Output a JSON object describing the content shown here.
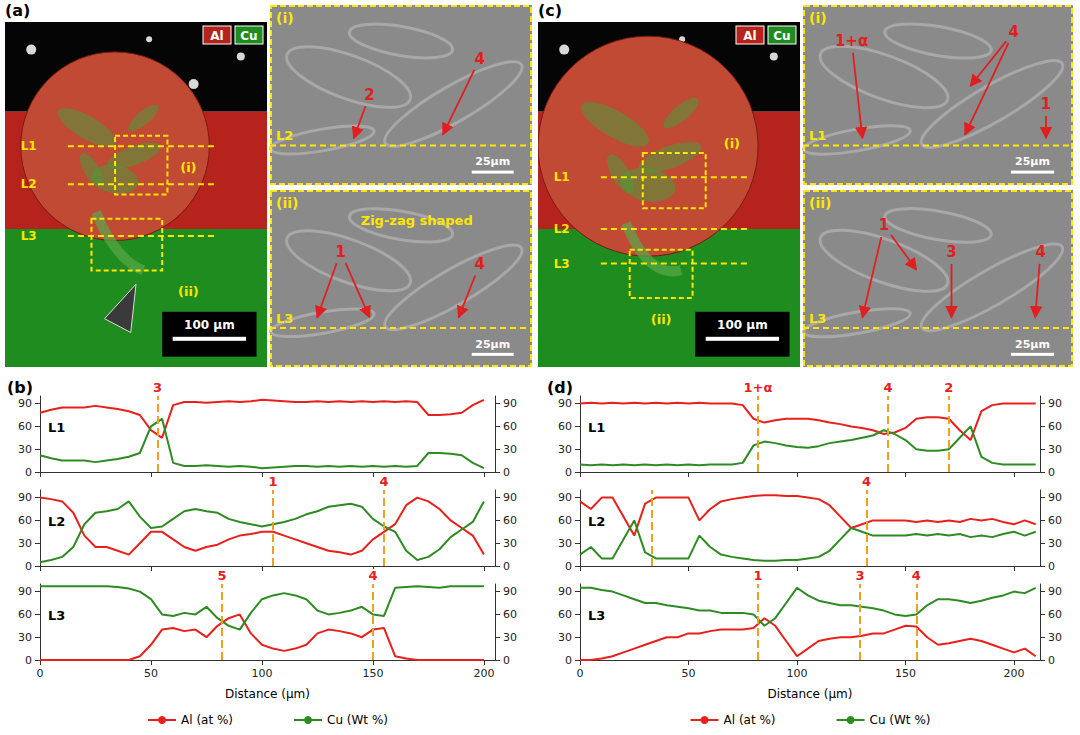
{
  "panels": [
    {
      "letter": "(a)",
      "eds_legend": [
        "Al",
        "Cu"
      ],
      "lines": [
        "L1",
        "L2",
        "L3"
      ],
      "boxes": [
        "(i)",
        "(ii)"
      ],
      "scale_bar": "100 μm",
      "insets": [
        {
          "label": "(i)",
          "line": "L2",
          "markers": [
            "2",
            "4"
          ],
          "scale_bar": "25μm"
        },
        {
          "label": "(ii)",
          "line": "L3",
          "markers": [
            "1",
            "4"
          ],
          "note": "Zig-zag shaped",
          "scale_bar": "25μm"
        }
      ]
    },
    {
      "letter": "(c)",
      "eds_legend": [
        "Al",
        "Cu"
      ],
      "lines": [
        "L1",
        "L2",
        "L3"
      ],
      "boxes": [
        "(i)",
        "(ii)"
      ],
      "scale_bar": "100 μm",
      "insets": [
        {
          "label": "(i)",
          "line": "L1",
          "markers": [
            "1+α",
            "4",
            "1"
          ],
          "scale_bar": "25μm"
        },
        {
          "label": "(ii)",
          "line": "L3",
          "markers": [
            "1",
            "3",
            "4"
          ],
          "scale_bar": "25μm"
        }
      ]
    }
  ],
  "chart_data": [
    {
      "type": "line",
      "panel": "(b)",
      "title": "L1",
      "tick_labels": "y",
      "x": [
        0,
        5,
        10,
        15,
        20,
        25,
        30,
        35,
        40,
        45,
        50,
        55,
        60,
        65,
        70,
        75,
        80,
        85,
        90,
        95,
        100,
        105,
        110,
        115,
        120,
        125,
        130,
        135,
        140,
        145,
        150,
        155,
        160,
        165,
        170,
        175,
        180,
        185,
        190,
        195,
        200
      ],
      "series": [
        {
          "name": "Al (at %)",
          "color": "#e8201c",
          "values": [
            78,
            82,
            85,
            85,
            85,
            87,
            85,
            83,
            80,
            75,
            55,
            45,
            88,
            92,
            92,
            91,
            92,
            93,
            92,
            93,
            95,
            94,
            93,
            92,
            92,
            93,
            92,
            93,
            92,
            93,
            92,
            93,
            92,
            93,
            92,
            75,
            75,
            76,
            78,
            88,
            95
          ]
        },
        {
          "name": "Cu (Wt %)",
          "color": "#2e8b22",
          "axis": "y2",
          "values": [
            22,
            18,
            15,
            15,
            15,
            13,
            15,
            17,
            20,
            25,
            60,
            70,
            12,
            8,
            8,
            9,
            8,
            7,
            8,
            7,
            5,
            6,
            7,
            8,
            8,
            7,
            8,
            7,
            8,
            7,
            8,
            7,
            8,
            7,
            8,
            25,
            25,
            24,
            22,
            12,
            5
          ]
        }
      ],
      "annotations": [
        {
          "x": 53,
          "label": "3"
        }
      ],
      "xlim": [
        0,
        205
      ],
      "xticks": [
        0,
        50,
        100,
        150,
        200
      ],
      "ylim": [
        0,
        100
      ],
      "yticks": [
        0,
        30,
        60,
        90
      ],
      "y2lim": [
        0,
        100
      ],
      "y2ticks": [
        0,
        30,
        60,
        90
      ]
    },
    {
      "type": "line",
      "panel": "(b)",
      "title": "L2",
      "tick_labels": "y",
      "x": [
        0,
        5,
        10,
        15,
        20,
        25,
        30,
        35,
        40,
        45,
        50,
        55,
        60,
        65,
        70,
        75,
        80,
        85,
        90,
        95,
        100,
        105,
        110,
        115,
        120,
        125,
        130,
        135,
        140,
        145,
        150,
        155,
        160,
        165,
        170,
        175,
        180,
        185,
        190,
        195,
        200
      ],
      "series": [
        {
          "name": "Al (at %)",
          "color": "#e8201c",
          "values": [
            90,
            88,
            85,
            70,
            40,
            25,
            25,
            20,
            15,
            30,
            45,
            45,
            35,
            25,
            20,
            25,
            28,
            35,
            40,
            42,
            45,
            45,
            40,
            35,
            30,
            25,
            20,
            18,
            15,
            20,
            35,
            45,
            55,
            80,
            90,
            85,
            75,
            60,
            50,
            40,
            15
          ]
        },
        {
          "name": "Cu (Wt %)",
          "color": "#2e8b22",
          "axis": "y2",
          "values": [
            5,
            8,
            12,
            25,
            55,
            70,
            72,
            75,
            85,
            65,
            50,
            52,
            62,
            72,
            75,
            72,
            70,
            62,
            58,
            55,
            52,
            55,
            58,
            62,
            68,
            72,
            78,
            80,
            82,
            78,
            62,
            52,
            45,
            20,
            8,
            12,
            22,
            38,
            48,
            58,
            85
          ]
        }
      ],
      "annotations": [
        {
          "x": 105,
          "label": "1"
        },
        {
          "x": 155,
          "label": "4"
        }
      ],
      "xlim": [
        0,
        205
      ],
      "xticks": [
        0,
        50,
        100,
        150,
        200
      ],
      "ylim": [
        0,
        100
      ],
      "yticks": [
        0,
        30,
        60,
        90
      ],
      "y2lim": [
        0,
        100
      ],
      "y2ticks": [
        0,
        30,
        60,
        90
      ]
    },
    {
      "type": "line",
      "panel": "(b)",
      "title": "L3",
      "x_label": "Distance (μm)",
      "legend": "bottom",
      "x": [
        0,
        5,
        10,
        15,
        20,
        25,
        30,
        35,
        40,
        45,
        50,
        55,
        60,
        65,
        70,
        75,
        80,
        85,
        90,
        95,
        100,
        105,
        110,
        115,
        120,
        125,
        130,
        135,
        140,
        145,
        150,
        155,
        160,
        165,
        170,
        175,
        180,
        185,
        190,
        195,
        200
      ],
      "series": [
        {
          "name": "Al (at %)",
          "color": "#e8201c",
          "values": [
            0,
            0,
            0,
            0,
            0,
            0,
            0,
            0,
            0,
            5,
            20,
            40,
            42,
            38,
            40,
            30,
            45,
            55,
            60,
            35,
            20,
            15,
            12,
            15,
            20,
            35,
            40,
            38,
            35,
            30,
            40,
            42,
            5,
            2,
            0,
            0,
            0,
            0,
            0,
            0,
            0
          ]
        },
        {
          "name": "Cu (Wt %)",
          "color": "#2e8b22",
          "axis": "y2",
          "values": [
            97,
            97,
            97,
            97,
            97,
            97,
            97,
            96,
            94,
            90,
            80,
            60,
            58,
            62,
            60,
            70,
            55,
            45,
            40,
            62,
            80,
            85,
            88,
            85,
            80,
            65,
            60,
            62,
            65,
            70,
            60,
            58,
            95,
            96,
            97,
            96,
            95,
            97,
            97,
            97,
            97
          ]
        }
      ],
      "annotations": [
        {
          "x": 82,
          "label": "5"
        },
        {
          "x": 150,
          "label": "4"
        }
      ],
      "xlim": [
        0,
        205
      ],
      "xticks": [
        0,
        50,
        100,
        150,
        200
      ],
      "ylim": [
        0,
        100
      ],
      "yticks": [
        0,
        30,
        60,
        90
      ],
      "y2lim": [
        0,
        100
      ],
      "y2ticks": [
        0,
        30,
        60,
        90
      ]
    },
    {
      "type": "line",
      "panel": "(d)",
      "title": "L1",
      "tick_labels": "y",
      "x": [
        0,
        5,
        10,
        15,
        20,
        25,
        30,
        35,
        40,
        45,
        50,
        55,
        60,
        65,
        70,
        75,
        80,
        85,
        90,
        95,
        100,
        105,
        110,
        115,
        120,
        125,
        130,
        135,
        140,
        145,
        150,
        155,
        160,
        165,
        170,
        175,
        180,
        185,
        190,
        195,
        200,
        205,
        210
      ],
      "series": [
        {
          "name": "Al (at %)",
          "color": "#e8201c",
          "values": [
            90,
            91,
            90,
            91,
            90,
            91,
            90,
            91,
            90,
            91,
            90,
            91,
            90,
            90,
            90,
            88,
            70,
            65,
            68,
            70,
            70,
            70,
            68,
            65,
            63,
            60,
            58,
            55,
            50,
            52,
            58,
            70,
            72,
            72,
            70,
            55,
            42,
            80,
            88,
            90,
            90,
            90,
            90
          ]
        },
        {
          "name": "Cu (Wt %)",
          "color": "#2e8b22",
          "axis": "y2",
          "values": [
            10,
            9,
            10,
            9,
            10,
            9,
            10,
            9,
            10,
            9,
            10,
            9,
            10,
            10,
            10,
            12,
            35,
            40,
            38,
            35,
            33,
            32,
            34,
            38,
            40,
            42,
            45,
            48,
            55,
            50,
            42,
            30,
            28,
            28,
            30,
            45,
            60,
            20,
            12,
            10,
            10,
            10,
            10
          ]
        }
      ],
      "annotations": [
        {
          "x": 82,
          "label": "1+α"
        },
        {
          "x": 142,
          "label": "4"
        },
        {
          "x": 170,
          "label": "2"
        }
      ],
      "xlim": [
        0,
        212
      ],
      "xticks": [
        0,
        50,
        100,
        150,
        200
      ],
      "ylim": [
        0,
        100
      ],
      "yticks": [
        0,
        30,
        60,
        90
      ],
      "y2lim": [
        0,
        100
      ],
      "y2ticks": [
        0,
        30,
        60,
        90
      ]
    },
    {
      "type": "line",
      "panel": "(d)",
      "title": "L2",
      "tick_labels": "y",
      "x": [
        0,
        5,
        10,
        15,
        20,
        25,
        30,
        35,
        40,
        45,
        50,
        55,
        60,
        65,
        70,
        75,
        80,
        85,
        90,
        95,
        100,
        105,
        110,
        115,
        120,
        125,
        130,
        135,
        140,
        145,
        150,
        155,
        160,
        165,
        170,
        175,
        180,
        185,
        190,
        195,
        200,
        205,
        210
      ],
      "series": [
        {
          "name": "Al (at %)",
          "color": "#e8201c",
          "values": [
            85,
            75,
            90,
            90,
            65,
            40,
            82,
            90,
            90,
            90,
            90,
            60,
            75,
            85,
            88,
            90,
            92,
            93,
            93,
            92,
            92,
            90,
            88,
            80,
            65,
            50,
            55,
            60,
            60,
            60,
            60,
            58,
            60,
            58,
            60,
            58,
            62,
            60,
            62,
            58,
            55,
            60,
            55
          ]
        },
        {
          "name": "Cu (Wt %)",
          "color": "#2e8b22",
          "axis": "y2",
          "values": [
            15,
            25,
            10,
            10,
            35,
            60,
            18,
            10,
            10,
            10,
            10,
            40,
            25,
            15,
            12,
            10,
            8,
            7,
            7,
            8,
            8,
            10,
            12,
            20,
            35,
            50,
            45,
            40,
            40,
            40,
            40,
            42,
            40,
            42,
            40,
            42,
            38,
            40,
            38,
            42,
            45,
            40,
            45
          ]
        }
      ],
      "annotations": [
        {
          "x": 33
        },
        {
          "x": 132,
          "label": "4"
        }
      ],
      "xlim": [
        0,
        212
      ],
      "xticks": [
        0,
        50,
        100,
        150,
        200
      ],
      "ylim": [
        0,
        100
      ],
      "yticks": [
        0,
        30,
        60,
        90
      ],
      "y2lim": [
        0,
        100
      ],
      "y2ticks": [
        0,
        30,
        60,
        90
      ]
    },
    {
      "type": "line",
      "panel": "(d)",
      "title": "L3",
      "x_label": "Distance (μm)",
      "legend": "bottom",
      "x": [
        0,
        5,
        10,
        15,
        20,
        25,
        30,
        35,
        40,
        45,
        50,
        55,
        60,
        65,
        70,
        75,
        80,
        85,
        90,
        95,
        100,
        105,
        110,
        115,
        120,
        125,
        130,
        135,
        140,
        145,
        150,
        155,
        160,
        165,
        170,
        175,
        180,
        185,
        190,
        195,
        200,
        205,
        210
      ],
      "series": [
        {
          "name": "Al (at %)",
          "color": "#e8201c",
          "values": [
            0,
            0,
            2,
            5,
            10,
            15,
            20,
            25,
            30,
            30,
            35,
            35,
            38,
            40,
            40,
            40,
            42,
            55,
            45,
            25,
            5,
            15,
            25,
            28,
            30,
            30,
            32,
            35,
            35,
            40,
            45,
            44,
            30,
            20,
            22,
            25,
            28,
            25,
            20,
            15,
            10,
            15,
            5
          ]
        },
        {
          "name": "Cu (Wt %)",
          "color": "#2e8b22",
          "axis": "y2",
          "values": [
            95,
            95,
            92,
            90,
            85,
            80,
            75,
            75,
            72,
            70,
            68,
            65,
            65,
            62,
            62,
            62,
            60,
            45,
            55,
            75,
            95,
            85,
            78,
            75,
            72,
            72,
            70,
            68,
            65,
            60,
            58,
            60,
            72,
            80,
            80,
            78,
            75,
            78,
            82,
            85,
            90,
            88,
            95
          ]
        }
      ],
      "annotations": [
        {
          "x": 82,
          "label": "1"
        },
        {
          "x": 129,
          "label": "3"
        },
        {
          "x": 155,
          "label": "4"
        }
      ],
      "xlim": [
        0,
        212
      ],
      "xticks": [
        0,
        50,
        100,
        150,
        200
      ],
      "ylim": [
        0,
        100
      ],
      "yticks": [
        0,
        30,
        60,
        90
      ],
      "y2lim": [
        0,
        100
      ],
      "y2ticks": [
        0,
        30,
        60,
        90
      ]
    }
  ]
}
